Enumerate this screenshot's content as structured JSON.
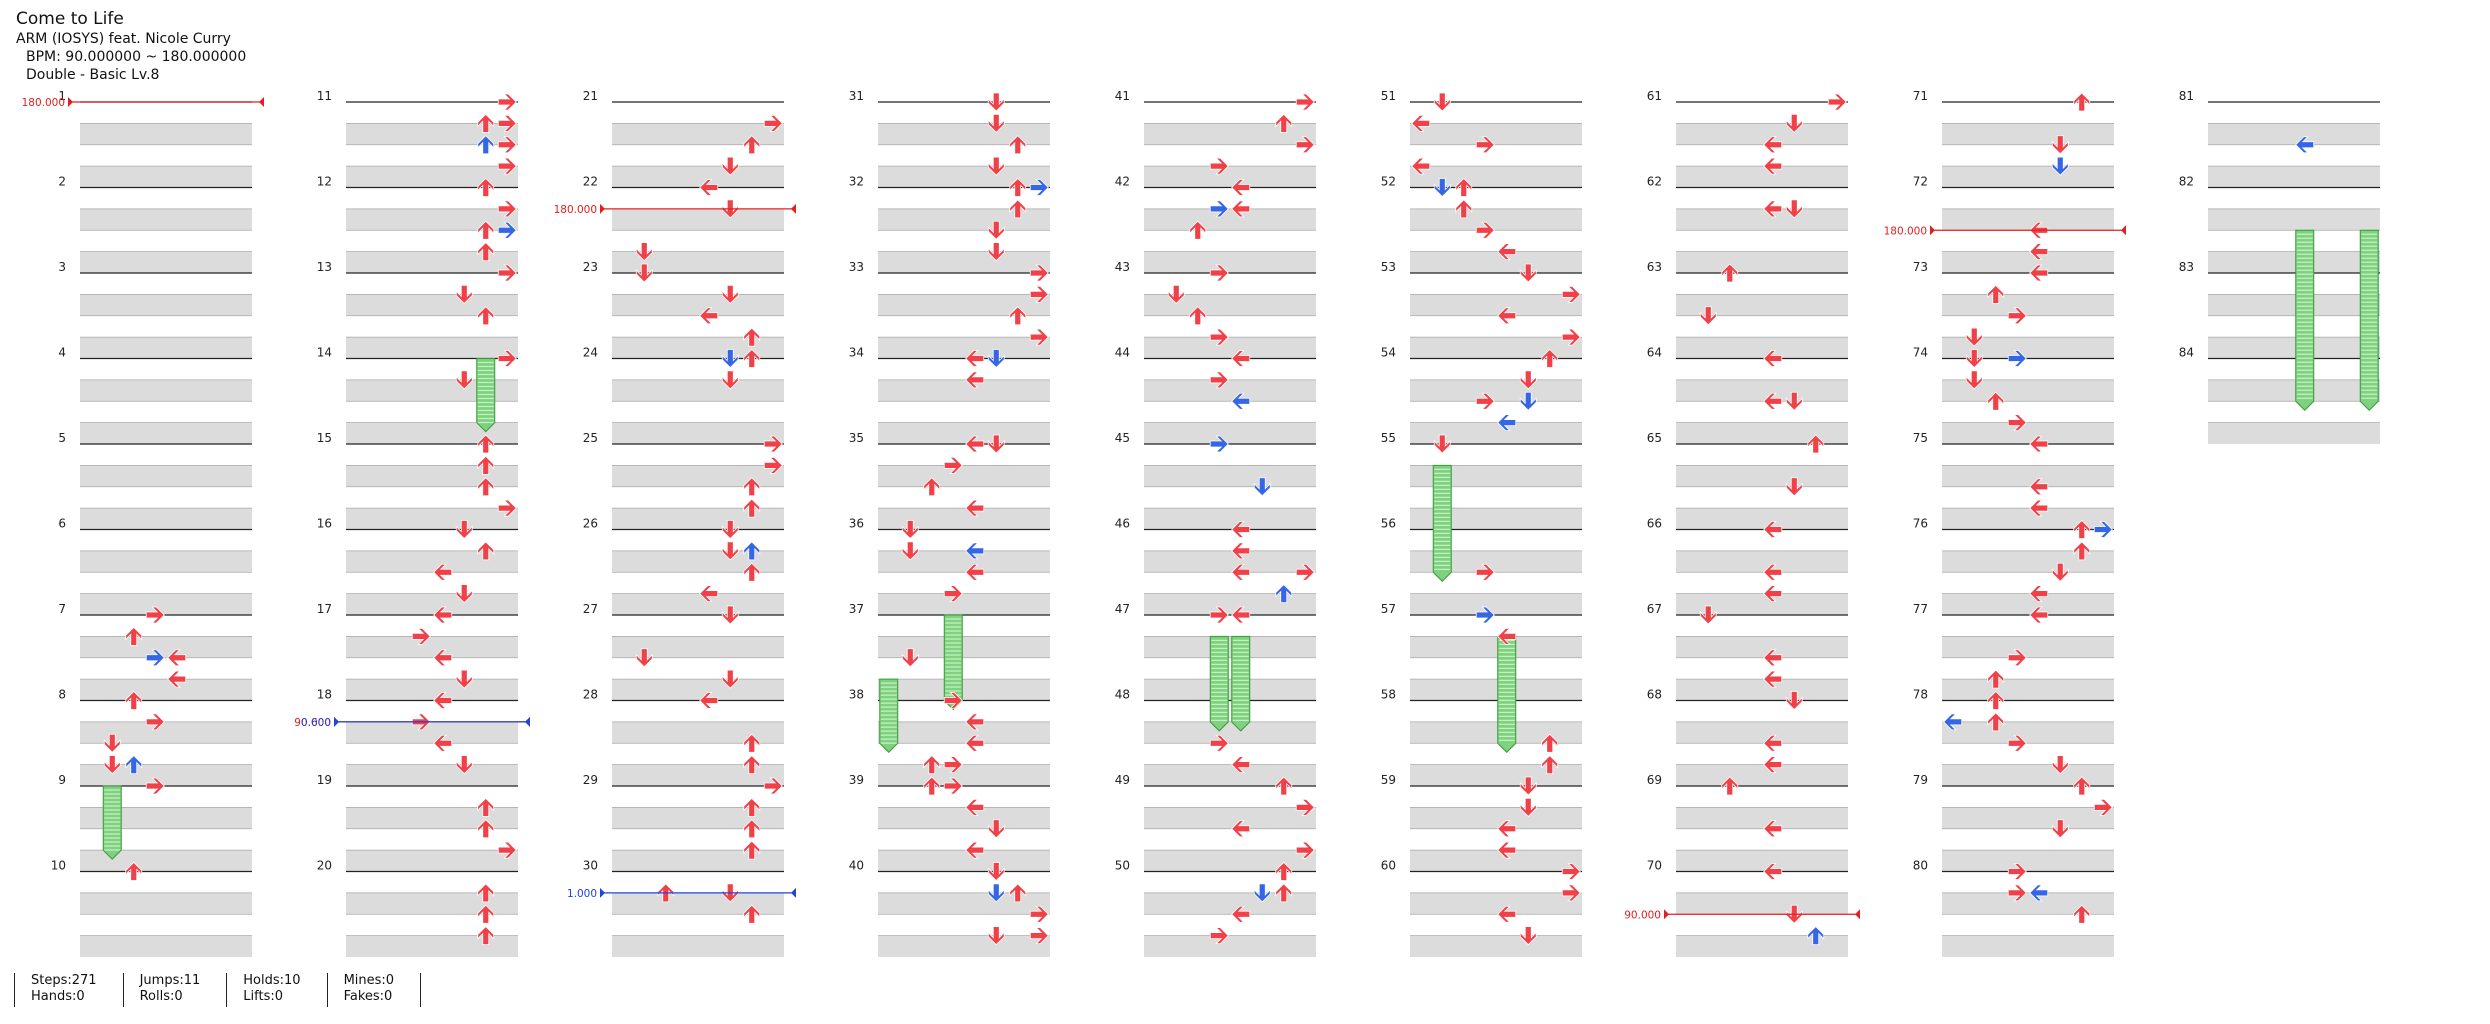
{
  "song": {
    "title": "Come to Life",
    "artist": "ARM (IOSYS) feat. Nicole Curry",
    "bpm": "BPM: 90.000000 ~ 180.000000",
    "difficulty": "Double - Basic  Lv.8"
  },
  "stats": [
    {
      "top": "Steps:271",
      "bottom": "Hands:0"
    },
    {
      "top": "Jumps:11",
      "bottom": "Rolls:0"
    },
    {
      "top": "Holds:10",
      "bottom": "Lifts:0"
    },
    {
      "top": "Mines:0",
      "bottom": "Fakes:0"
    }
  ],
  "chart_data": {
    "measures_per_column": 10,
    "total_measures": 84,
    "colors": {
      "step": "#f04048",
      "step_off": "#3466e6",
      "hold": "#7ed27e",
      "bpm": "#e02020",
      "stop": "#2244dd"
    },
    "arrow_icons": {
      "L": "left-arrow-icon",
      "D": "down-arrow-icon",
      "U": "up-arrow-icon",
      "R": "right-arrow-icon"
    },
    "bpm_changes": [
      {
        "measure": 1,
        "value": "180.000"
      },
      {
        "measure": 22.25,
        "value": "180.000"
      },
      {
        "measure": 72.5,
        "value": "180.000"
      },
      {
        "measure": 70.5,
        "value": "90.000"
      },
      {
        "measure": 18.25,
        "value": "90.000"
      }
    ],
    "stops": [
      {
        "measure": 18.25,
        "value": "0.600"
      },
      {
        "measure": 30.25,
        "value": "1.000"
      }
    ],
    "notes": [
      [
        7.0,
        3,
        "r"
      ],
      [
        7.25,
        2,
        "r"
      ],
      [
        7.5,
        3,
        "b"
      ],
      [
        7.5,
        4,
        "r"
      ],
      [
        7.75,
        4,
        "r"
      ],
      [
        8.0,
        2,
        "r"
      ],
      [
        8.25,
        3,
        "r"
      ],
      [
        8.5,
        1,
        "r"
      ],
      [
        8.75,
        1,
        "r"
      ],
      [
        8.75,
        2,
        "b"
      ],
      [
        9.0,
        3,
        "r"
      ],
      [
        10.0,
        2,
        "r"
      ],
      [
        11.0,
        7,
        "r"
      ],
      [
        11.25,
        6,
        "r"
      ],
      [
        11.25,
        7,
        "r"
      ],
      [
        11.5,
        6,
        "b"
      ],
      [
        11.5,
        7,
        "r"
      ],
      [
        11.75,
        7,
        "r"
      ],
      [
        12.0,
        6,
        "r"
      ],
      [
        12.25,
        7,
        "r"
      ],
      [
        12.5,
        6,
        "r"
      ],
      [
        12.75,
        6,
        "r"
      ],
      [
        12.5,
        7,
        "b"
      ],
      [
        13.0,
        7,
        "r"
      ],
      [
        13.25,
        5,
        "r"
      ],
      [
        13.5,
        6,
        "r"
      ],
      [
        14.0,
        7,
        "r"
      ],
      [
        14.25,
        5,
        "r"
      ],
      [
        15.0,
        6,
        "r"
      ],
      [
        15.25,
        6,
        "r"
      ],
      [
        15.5,
        6,
        "r"
      ],
      [
        15.75,
        7,
        "r"
      ],
      [
        16.0,
        5,
        "r"
      ],
      [
        16.25,
        6,
        "r"
      ],
      [
        16.5,
        4,
        "r"
      ],
      [
        16.75,
        5,
        "r"
      ],
      [
        17.0,
        4,
        "r"
      ],
      [
        17.25,
        3,
        "r"
      ],
      [
        17.5,
        4,
        "r"
      ],
      [
        17.75,
        5,
        "r"
      ],
      [
        18.0,
        4,
        "r"
      ],
      [
        18.25,
        3,
        "r"
      ],
      [
        18.5,
        4,
        "r"
      ],
      [
        18.75,
        5,
        "r"
      ],
      [
        19.25,
        6,
        "r"
      ],
      [
        19.5,
        6,
        "r"
      ],
      [
        19.75,
        7,
        "r"
      ],
      [
        20.25,
        6,
        "r"
      ],
      [
        20.5,
        6,
        "r"
      ],
      [
        20.75,
        6,
        "r"
      ],
      [
        21.25,
        7,
        "r"
      ],
      [
        21.5,
        6,
        "r"
      ],
      [
        21.75,
        5,
        "r"
      ],
      [
        22.0,
        4,
        "r"
      ],
      [
        22.25,
        5,
        "r"
      ],
      [
        22.75,
        1,
        "r"
      ],
      [
        23.0,
        1,
        "r"
      ],
      [
        23.25,
        5,
        "r"
      ],
      [
        23.5,
        4,
        "r"
      ],
      [
        23.75,
        6,
        "r"
      ],
      [
        24.0,
        5,
        "b"
      ],
      [
        24.0,
        6,
        "r"
      ],
      [
        24.25,
        5,
        "r"
      ],
      [
        25.0,
        7,
        "r"
      ],
      [
        25.25,
        7,
        "r"
      ],
      [
        25.5,
        6,
        "r"
      ],
      [
        25.75,
        6,
        "r"
      ],
      [
        26.0,
        5,
        "r"
      ],
      [
        26.25,
        6,
        "b"
      ],
      [
        26.25,
        5,
        "r"
      ],
      [
        26.5,
        6,
        "r"
      ],
      [
        26.75,
        4,
        "r"
      ],
      [
        27.0,
        5,
        "r"
      ],
      [
        27.5,
        1,
        "r"
      ],
      [
        27.75,
        5,
        "r"
      ],
      [
        28.0,
        4,
        "r"
      ],
      [
        28.5,
        6,
        "r"
      ],
      [
        28.75,
        6,
        "r"
      ],
      [
        29.0,
        7,
        "r"
      ],
      [
        29.25,
        6,
        "r"
      ],
      [
        29.5,
        6,
        "r"
      ],
      [
        29.75,
        6,
        "r"
      ],
      [
        30.25,
        2,
        "r"
      ],
      [
        30.25,
        5,
        "r"
      ],
      [
        30.5,
        6,
        "r"
      ],
      [
        31.0,
        5,
        "r"
      ],
      [
        31.25,
        5,
        "r"
      ],
      [
        31.5,
        6,
        "r"
      ],
      [
        31.75,
        5,
        "r"
      ],
      [
        32.0,
        6,
        "r"
      ],
      [
        32.0,
        7,
        "b"
      ],
      [
        32.25,
        6,
        "r"
      ],
      [
        32.5,
        5,
        "r"
      ],
      [
        32.75,
        5,
        "r"
      ],
      [
        33.0,
        7,
        "r"
      ],
      [
        33.25,
        7,
        "r"
      ],
      [
        33.5,
        6,
        "r"
      ],
      [
        33.75,
        7,
        "r"
      ],
      [
        34.0,
        4,
        "r"
      ],
      [
        34.0,
        5,
        "b"
      ],
      [
        34.25,
        4,
        "r"
      ],
      [
        35.0,
        4,
        "r"
      ],
      [
        35.0,
        5,
        "r"
      ],
      [
        35.25,
        3,
        "r"
      ],
      [
        35.5,
        2,
        "r"
      ],
      [
        35.75,
        4,
        "r"
      ],
      [
        36.0,
        1,
        "r"
      ],
      [
        36.25,
        4,
        "b"
      ],
      [
        36.25,
        1,
        "r"
      ],
      [
        36.5,
        4,
        "r"
      ],
      [
        36.75,
        3,
        "r"
      ],
      [
        37.5,
        1,
        "r"
      ],
      [
        38.0,
        3,
        "r"
      ],
      [
        38.25,
        4,
        "r"
      ],
      [
        38.5,
        4,
        "r"
      ],
      [
        38.75,
        2,
        "r"
      ],
      [
        38.75,
        3,
        "r"
      ],
      [
        39.0,
        2,
        "r"
      ],
      [
        39.0,
        3,
        "r"
      ],
      [
        39.25,
        4,
        "r"
      ],
      [
        39.5,
        5,
        "r"
      ],
      [
        39.75,
        4,
        "r"
      ],
      [
        40.0,
        5,
        "r"
      ],
      [
        40.25,
        5,
        "b"
      ],
      [
        40.25,
        6,
        "r"
      ],
      [
        40.5,
        7,
        "r"
      ],
      [
        40.75,
        5,
        "r"
      ],
      [
        40.75,
        7,
        "r"
      ],
      [
        41.0,
        7,
        "r"
      ],
      [
        41.25,
        6,
        "r"
      ],
      [
        41.5,
        7,
        "r"
      ],
      [
        41.75,
        3,
        "r"
      ],
      [
        42.0,
        4,
        "r"
      ],
      [
        42.25,
        3,
        "b"
      ],
      [
        42.25,
        4,
        "r"
      ],
      [
        42.5,
        2,
        "r"
      ],
      [
        43.0,
        3,
        "r"
      ],
      [
        43.25,
        1,
        "r"
      ],
      [
        43.5,
        2,
        "r"
      ],
      [
        43.75,
        3,
        "r"
      ],
      [
        44.0,
        4,
        "r"
      ],
      [
        44.25,
        3,
        "r"
      ],
      [
        44.5,
        4,
        "b"
      ],
      [
        45.0,
        3,
        "b"
      ],
      [
        45.5,
        5,
        "b"
      ],
      [
        46.0,
        4,
        "r"
      ],
      [
        46.25,
        4,
        "r"
      ],
      [
        46.5,
        4,
        "r"
      ],
      [
        46.5,
        7,
        "r"
      ],
      [
        46.75,
        6,
        "b"
      ],
      [
        47.0,
        3,
        "r"
      ],
      [
        47.0,
        4,
        "r"
      ],
      [
        48.5,
        3,
        "r"
      ],
      [
        48.75,
        4,
        "r"
      ],
      [
        49.0,
        6,
        "r"
      ],
      [
        49.25,
        7,
        "r"
      ],
      [
        49.5,
        4,
        "r"
      ],
      [
        49.75,
        7,
        "r"
      ],
      [
        50.0,
        6,
        "r"
      ],
      [
        50.25,
        5,
        "b"
      ],
      [
        50.25,
        6,
        "r"
      ],
      [
        50.5,
        4,
        "r"
      ],
      [
        50.75,
        3,
        "r"
      ],
      [
        51.0,
        1,
        "r"
      ],
      [
        51.25,
        0,
        "r"
      ],
      [
        51.5,
        3,
        "r"
      ],
      [
        51.75,
        0,
        "r"
      ],
      [
        52.0,
        1,
        "b"
      ],
      [
        52.0,
        2,
        "r"
      ],
      [
        52.25,
        2,
        "r"
      ],
      [
        52.5,
        3,
        "r"
      ],
      [
        52.75,
        4,
        "r"
      ],
      [
        53.0,
        5,
        "r"
      ],
      [
        53.25,
        7,
        "r"
      ],
      [
        53.5,
        4,
        "r"
      ],
      [
        53.75,
        7,
        "r"
      ],
      [
        54.0,
        6,
        "r"
      ],
      [
        54.25,
        5,
        "r"
      ],
      [
        54.5,
        5,
        "b"
      ],
      [
        54.5,
        3,
        "r"
      ],
      [
        54.75,
        4,
        "b"
      ],
      [
        55.0,
        1,
        "r"
      ],
      [
        56.5,
        3,
        "r"
      ],
      [
        57.0,
        3,
        "b"
      ],
      [
        57.25,
        4,
        "r"
      ],
      [
        58.5,
        6,
        "r"
      ],
      [
        58.75,
        6,
        "r"
      ],
      [
        59.0,
        5,
        "r"
      ],
      [
        59.25,
        5,
        "r"
      ],
      [
        59.5,
        4,
        "r"
      ],
      [
        59.75,
        4,
        "r"
      ],
      [
        60.0,
        7,
        "r"
      ],
      [
        60.25,
        7,
        "r"
      ],
      [
        60.5,
        4,
        "r"
      ],
      [
        60.75,
        5,
        "r"
      ],
      [
        61.0,
        7,
        "r"
      ],
      [
        61.25,
        5,
        "r"
      ],
      [
        61.5,
        4,
        "r"
      ],
      [
        61.75,
        4,
        "r"
      ],
      [
        62.25,
        4,
        "r"
      ],
      [
        62.25,
        5,
        "r"
      ],
      [
        63.0,
        2,
        "r"
      ],
      [
        63.5,
        1,
        "r"
      ],
      [
        64.0,
        4,
        "r"
      ],
      [
        64.5,
        4,
        "r"
      ],
      [
        64.5,
        5,
        "r"
      ],
      [
        65.0,
        6,
        "r"
      ],
      [
        65.5,
        5,
        "r"
      ],
      [
        66.0,
        4,
        "r"
      ],
      [
        66.5,
        4,
        "r"
      ],
      [
        66.75,
        4,
        "r"
      ],
      [
        67.0,
        1,
        "r"
      ],
      [
        67.5,
        4,
        "r"
      ],
      [
        67.75,
        4,
        "r"
      ],
      [
        68.0,
        5,
        "r"
      ],
      [
        68.5,
        4,
        "r"
      ],
      [
        68.75,
        4,
        "r"
      ],
      [
        69.0,
        2,
        "r"
      ],
      [
        69.5,
        4,
        "r"
      ],
      [
        70.0,
        4,
        "r"
      ],
      [
        70.5,
        5,
        "r"
      ],
      [
        70.75,
        6,
        "b"
      ],
      [
        71.0,
        6,
        "r"
      ],
      [
        71.5,
        5,
        "r"
      ],
      [
        71.75,
        5,
        "r"
      ],
      [
        71.75,
        5,
        "b"
      ],
      [
        72.5,
        4,
        "r"
      ],
      [
        72.75,
        4,
        "r"
      ],
      [
        73.0,
        4,
        "r"
      ],
      [
        73.25,
        2,
        "r"
      ],
      [
        73.5,
        3,
        "r"
      ],
      [
        73.75,
        1,
        "r"
      ],
      [
        74.0,
        1,
        "r"
      ],
      [
        74.0,
        3,
        "b"
      ],
      [
        74.25,
        1,
        "r"
      ],
      [
        74.5,
        2,
        "r"
      ],
      [
        74.75,
        3,
        "r"
      ],
      [
        75.0,
        4,
        "r"
      ],
      [
        75.5,
        4,
        "r"
      ],
      [
        75.75,
        4,
        "r"
      ],
      [
        76.0,
        6,
        "r"
      ],
      [
        76.0,
        7,
        "b"
      ],
      [
        76.25,
        6,
        "r"
      ],
      [
        76.5,
        5,
        "r"
      ],
      [
        76.75,
        4,
        "r"
      ],
      [
        77.0,
        4,
        "r"
      ],
      [
        77.5,
        3,
        "r"
      ],
      [
        77.75,
        2,
        "r"
      ],
      [
        78.0,
        2,
        "r"
      ],
      [
        78.25,
        0,
        "b"
      ],
      [
        78.25,
        2,
        "r"
      ],
      [
        78.5,
        3,
        "r"
      ],
      [
        78.75,
        5,
        "r"
      ],
      [
        79.0,
        6,
        "r"
      ],
      [
        79.25,
        7,
        "r"
      ],
      [
        79.5,
        5,
        "r"
      ],
      [
        80.0,
        3,
        "r"
      ],
      [
        80.25,
        4,
        "b"
      ],
      [
        80.25,
        3,
        "r"
      ],
      [
        80.5,
        6,
        "r"
      ],
      [
        81.5,
        4,
        "b"
      ]
    ],
    "holds": [
      [
        9.0,
        9.75,
        1
      ],
      [
        14.0,
        14.75,
        6
      ],
      [
        37.0,
        38.0,
        3
      ],
      [
        37.75,
        38.5,
        0
      ],
      [
        47.25,
        48.25,
        3
      ],
      [
        47.25,
        48.25,
        4
      ],
      [
        55.25,
        56.5,
        1
      ],
      [
        57.25,
        58.5,
        4
      ],
      [
        82.5,
        84.5,
        4
      ],
      [
        82.5,
        84.5,
        7
      ]
    ]
  }
}
